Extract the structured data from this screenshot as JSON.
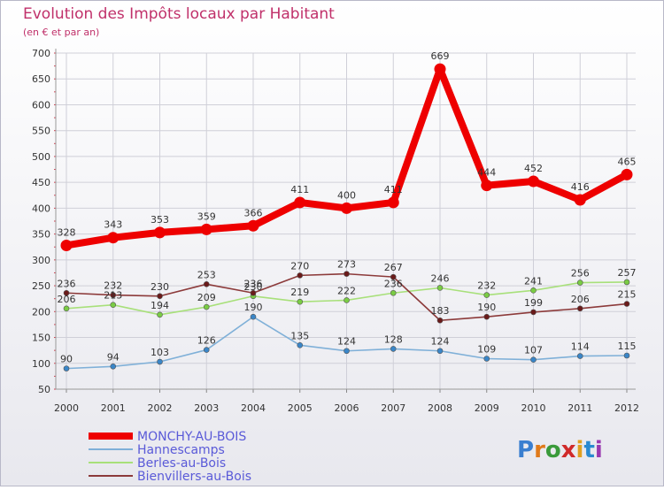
{
  "colors": {
    "background_top": "#ffffff",
    "background_bottom": "#e8e8ee",
    "frame": "#b8b8c8",
    "grid": "#cfcfd8",
    "title": "#c0306a",
    "legend_text": "#5a5ad8"
  },
  "logo": {
    "text": "Proxiti"
  },
  "chart_data": {
    "type": "line",
    "title": "Evolution des Impôts locaux par Habitant",
    "subtitle": "(en € et par an)",
    "xlabel": "",
    "ylabel": "",
    "x": [
      "2000",
      "2001",
      "2002",
      "2003",
      "2004",
      "2005",
      "2006",
      "2007",
      "2008",
      "2009",
      "2010",
      "2011",
      "2012"
    ],
    "ylim": [
      50,
      700
    ],
    "yticks": [
      50,
      100,
      150,
      200,
      250,
      300,
      350,
      400,
      450,
      500,
      550,
      600,
      650,
      700
    ],
    "grid": true,
    "legend_position": "bottom-left",
    "series": [
      {
        "name": "MONCHY-AU-BOIS",
        "color": "#ee0000",
        "point_color": "#ee0000",
        "width": "thick",
        "values": [
          328,
          343,
          353,
          359,
          366,
          411,
          400,
          411,
          669,
          444,
          452,
          416,
          465
        ]
      },
      {
        "name": "Hannescamps",
        "color": "#7fb0d8",
        "point_color": "#3a86c8",
        "width": "thin",
        "values": [
          90,
          94,
          103,
          126,
          190,
          135,
          124,
          128,
          124,
          109,
          107,
          114,
          115
        ]
      },
      {
        "name": "Berles-au-Bois",
        "color": "#a8e07a",
        "point_color": "#7acc44",
        "width": "thin",
        "values": [
          206,
          213,
          194,
          209,
          230,
          219,
          222,
          236,
          246,
          232,
          241,
          256,
          257
        ]
      },
      {
        "name": "Bienvillers-au-Bois",
        "color": "#8c3a3a",
        "point_color": "#6a1a1a",
        "width": "thin",
        "values": [
          236,
          232,
          230,
          253,
          236,
          270,
          273,
          267,
          183,
          190,
          199,
          206,
          215
        ]
      }
    ]
  }
}
